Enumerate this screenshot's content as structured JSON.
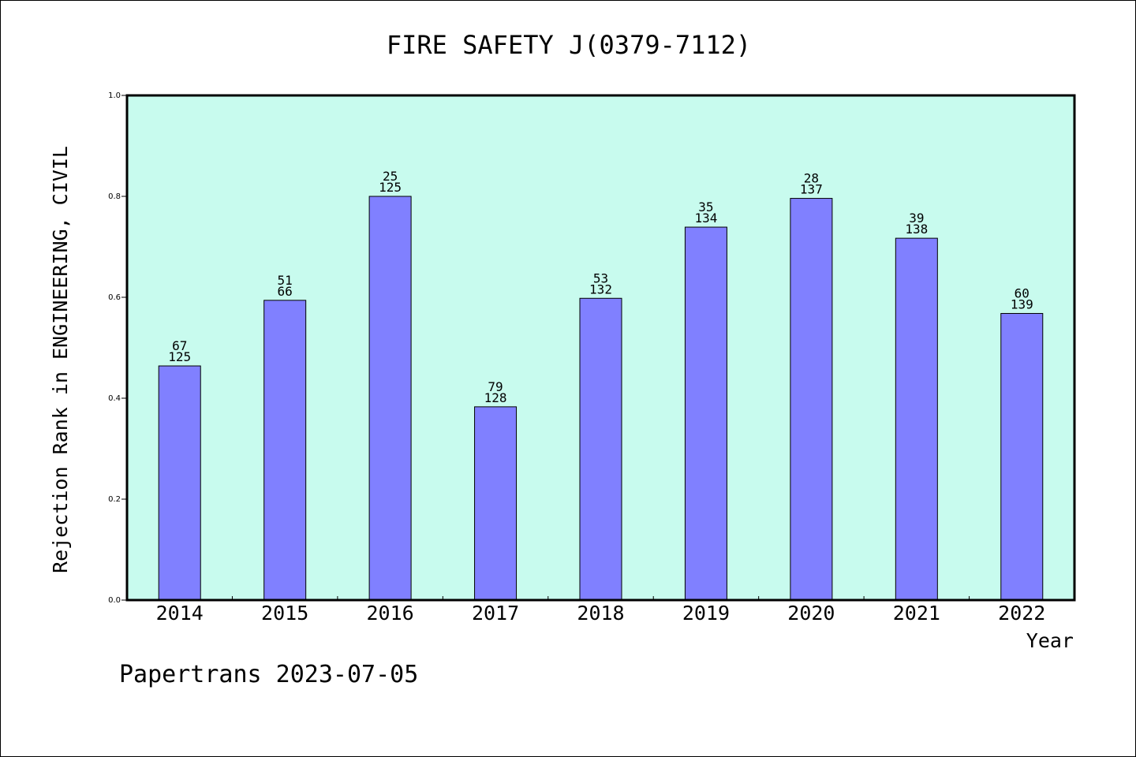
{
  "chart_data": {
    "type": "bar",
    "title": "FIRE SAFETY J(0379-7112)",
    "xlabel": "Year",
    "ylabel": "Rejection Rank in ENGINEERING, CIVIL",
    "ylim": [
      0,
      1.0
    ],
    "yticks": [
      "0.0",
      "0.2",
      "0.4",
      "0.6",
      "0.8",
      "1.0"
    ],
    "categories": [
      "2014",
      "2015",
      "2016",
      "2017",
      "2018",
      "2019",
      "2020",
      "2021",
      "2022"
    ],
    "values": [
      0.464,
      0.594,
      0.8,
      0.383,
      0.598,
      0.739,
      0.796,
      0.717,
      0.568
    ],
    "rank_labels": [
      "67",
      "51",
      "25",
      "79",
      "53",
      "35",
      "28",
      "39",
      "60"
    ],
    "total_labels": [
      "125",
      "66",
      "125",
      "128",
      "132",
      "134",
      "137",
      "138",
      "139"
    ],
    "grid": false,
    "legend": "none"
  },
  "footer": "Papertrans 2023-07-05",
  "colors": {
    "plot_background": "#c8fbee",
    "bar_fill": "#8080ff",
    "bar_stroke": "#000000",
    "axis": "#000000",
    "text": "#000000"
  }
}
